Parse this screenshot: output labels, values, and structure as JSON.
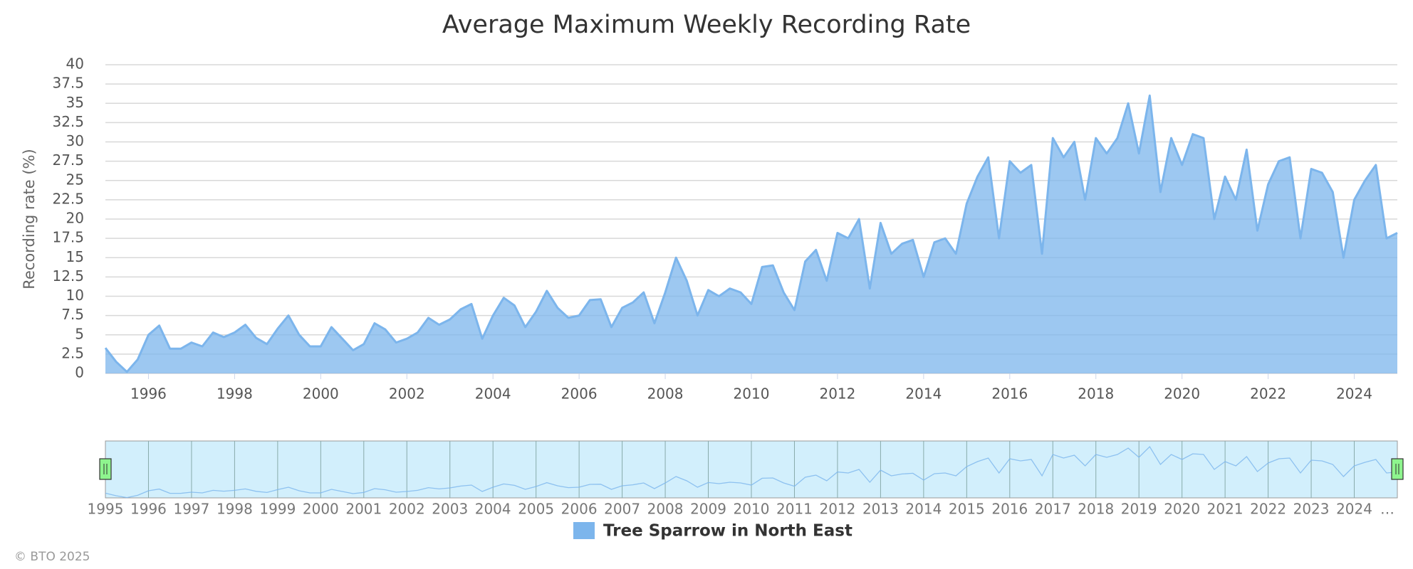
{
  "chart_data": {
    "type": "area",
    "title": "Average Maximum Weekly Recording Rate",
    "ylabel": "Recording rate (%)",
    "credit": "© BTO 2025",
    "xlim": [
      1995,
      2025
    ],
    "xticks": [
      1996,
      1998,
      2000,
      2002,
      2004,
      2006,
      2008,
      2010,
      2012,
      2014,
      2016,
      2018,
      2020,
      2022,
      2024
    ],
    "ylim": [
      0,
      40
    ],
    "yticks": [
      0,
      2.5,
      5,
      7.5,
      10,
      12.5,
      15,
      17.5,
      20,
      22.5,
      25,
      27.5,
      30,
      32.5,
      35,
      37.5,
      40
    ],
    "grid": true,
    "navigator_labels": [
      "1995",
      "1996",
      "1997",
      "1998",
      "1999",
      "2000",
      "2001",
      "2002",
      "2003",
      "2004",
      "2005",
      "2006",
      "2007",
      "2008",
      "2009",
      "2010",
      "2011",
      "2012",
      "2013",
      "2014",
      "2015",
      "2016",
      "2017",
      "2018",
      "2019",
      "2020",
      "2021",
      "2022",
      "2023",
      "2024",
      "…"
    ],
    "x": [
      1995,
      1995.25,
      1995.5,
      1995.75,
      1996,
      1996.25,
      1996.5,
      1996.75,
      1997,
      1997.25,
      1997.5,
      1997.75,
      1998,
      1998.25,
      1998.5,
      1998.75,
      1999,
      1999.25,
      1999.5,
      1999.75,
      2000,
      2000.25,
      2000.5,
      2000.75,
      2001,
      2001.25,
      2001.5,
      2001.75,
      2002,
      2002.25,
      2002.5,
      2002.75,
      2003,
      2003.25,
      2003.5,
      2003.75,
      2004,
      2004.25,
      2004.5,
      2004.75,
      2005,
      2005.25,
      2005.5,
      2005.75,
      2006,
      2006.25,
      2006.5,
      2006.75,
      2007,
      2007.25,
      2007.5,
      2007.75,
      2008,
      2008.25,
      2008.5,
      2008.75,
      2009,
      2009.25,
      2009.5,
      2009.75,
      2010,
      2010.25,
      2010.5,
      2010.75,
      2011,
      2011.25,
      2011.5,
      2011.75,
      2012,
      2012.25,
      2012.5,
      2012.75,
      2013,
      2013.25,
      2013.5,
      2013.75,
      2014,
      2014.25,
      2014.5,
      2014.75,
      2015,
      2015.25,
      2015.5,
      2015.75,
      2016,
      2016.25,
      2016.5,
      2016.75,
      2017,
      2017.25,
      2017.5,
      2017.75,
      2018,
      2018.25,
      2018.5,
      2018.75,
      2019,
      2019.25,
      2019.5,
      2019.75,
      2020,
      2020.25,
      2020.5,
      2020.75,
      2021,
      2021.25,
      2021.5,
      2021.75,
      2022,
      2022.25,
      2022.5,
      2022.75,
      2023,
      2023.25,
      2023.5,
      2023.75,
      2024,
      2024.25,
      2024.5,
      2024.75,
      2025
    ],
    "series": [
      {
        "name": "Tree Sparrow in North East",
        "color": "#7cb5ec",
        "values": [
          3.3,
          1.5,
          0.2,
          1.8,
          5,
          6.2,
          3.2,
          3.2,
          4,
          3.5,
          5.3,
          4.7,
          5.3,
          6.3,
          4.6,
          3.8,
          5.8,
          7.5,
          5,
          3.5,
          3.5,
          6,
          4.5,
          3,
          3.8,
          6.5,
          5.7,
          4,
          4.5,
          5.3,
          7.2,
          6.3,
          7,
          8.3,
          9,
          4.5,
          7.5,
          9.8,
          8.8,
          6,
          8,
          10.7,
          8.5,
          7.2,
          7.5,
          9.5,
          9.6,
          6,
          8.5,
          9.2,
          10.5,
          6.5,
          10.5,
          15,
          12,
          7.5,
          10.8,
          10,
          11,
          10.5,
          9,
          13.8,
          14,
          10.5,
          8.2,
          14.5,
          16,
          12,
          18.2,
          17.5,
          20,
          11,
          19.5,
          15.5,
          16.8,
          17.3,
          12.5,
          17,
          17.5,
          15.5,
          22,
          25.5,
          28,
          17.5,
          27.5,
          26,
          27,
          15.5,
          30.5,
          28,
          30,
          22.5,
          30.5,
          28.5,
          30.5,
          35,
          28.5,
          36,
          23.5,
          30.5,
          27,
          31,
          30.5,
          20,
          25.5,
          22.5,
          29,
          18.5,
          24.5,
          27.5,
          28,
          17.5,
          26.5,
          26,
          23.5,
          15,
          22.5,
          25,
          27,
          17.5,
          18.2
        ]
      }
    ]
  }
}
